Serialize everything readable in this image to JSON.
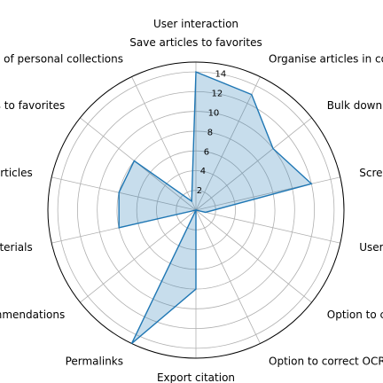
{
  "chart_data": {
    "type": "radar",
    "title": "User interaction",
    "categories": [
      "Save articles to favorites",
      "Organise articles in collections/folders",
      "Bulk download",
      "Screenshot tool",
      "Users can add/edit of metadata",
      "Option to correct OLR",
      "Option to correct OCR",
      "Export citation",
      "Permalinks",
      "Personalised recommendations",
      "Keep track of viewed materials",
      "Tag articles",
      "Save queries to favorites",
      "Comparative view of personal collections"
    ],
    "values": [
      14,
      13,
      10,
      12,
      1,
      0,
      0,
      8,
      15,
      0,
      8,
      8,
      8,
      1
    ],
    "rlim": [
      0,
      15
    ],
    "r_ticks": [
      2,
      4,
      6,
      8,
      10,
      12,
      14
    ],
    "grid": true,
    "colors": {
      "line": "#1f77b4",
      "fill": "#1f77b4"
    }
  }
}
